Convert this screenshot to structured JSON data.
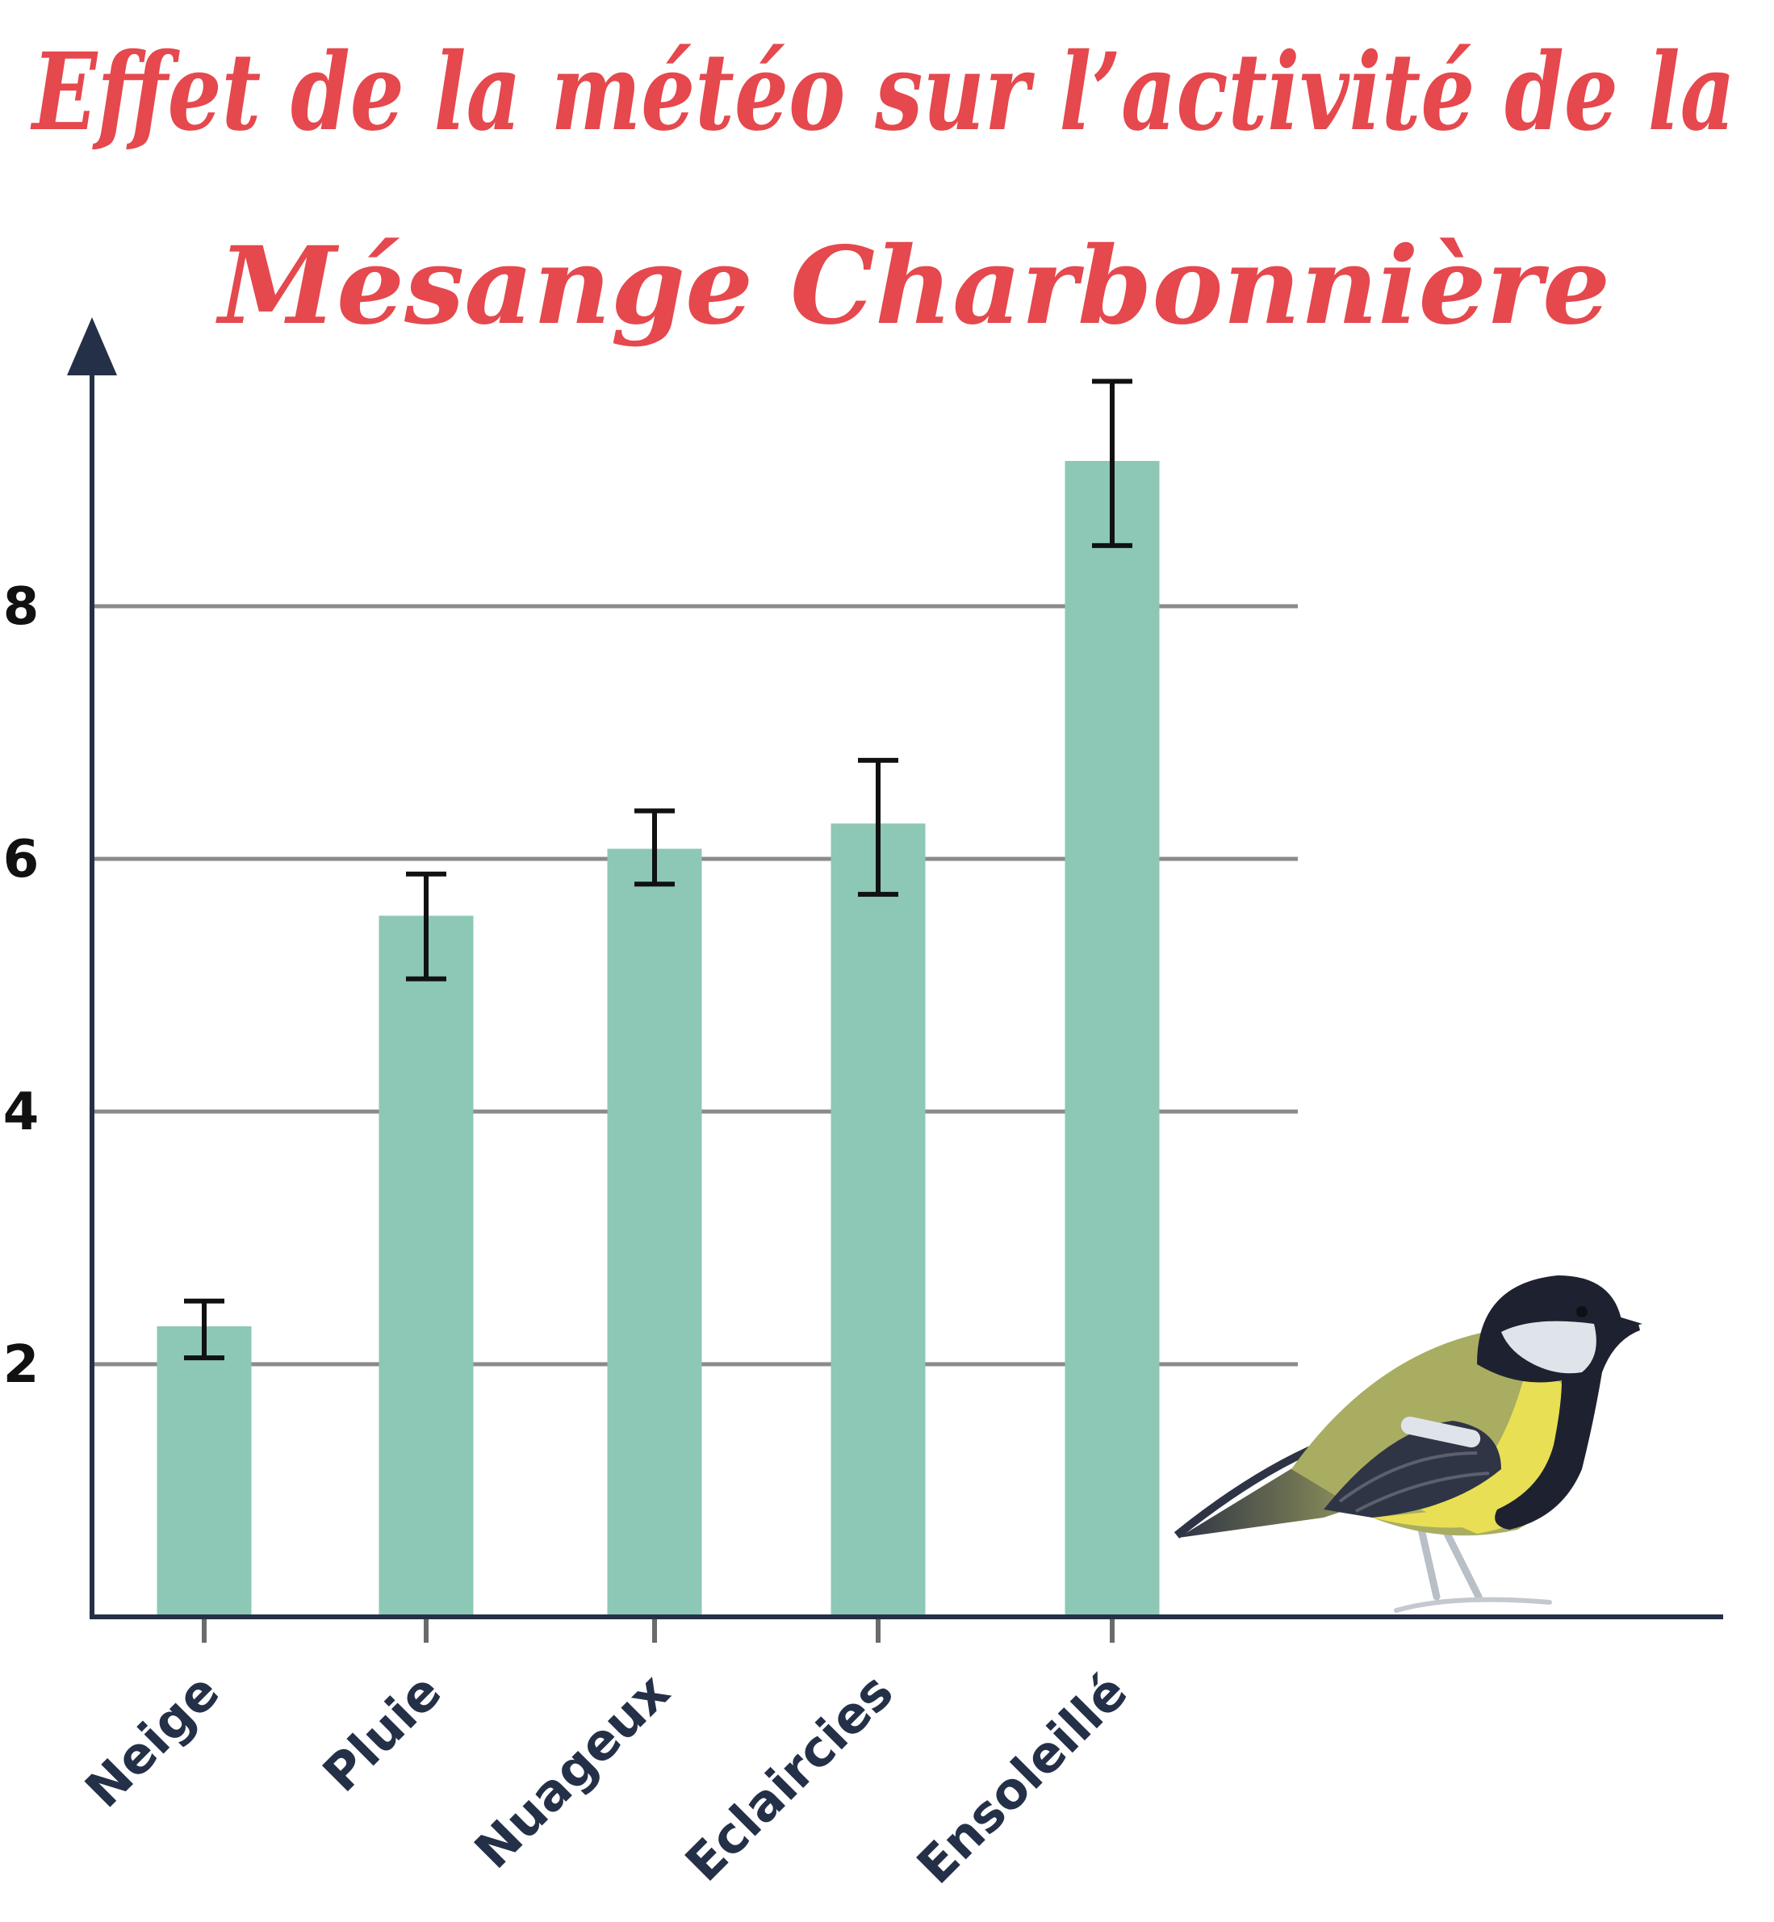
{
  "chart_data": {
    "type": "bar",
    "title_lines": [
      "Effet de la météo sur l’activité de la",
      "Mésange Charbonnière"
    ],
    "categories": [
      "Neige",
      "Pluie",
      "Nuageux",
      "Eclaircies",
      "Ensoleillé"
    ],
    "values": [
      2.3,
      5.55,
      6.08,
      6.28,
      9.15
    ],
    "error_low": [
      2.05,
      5.05,
      5.8,
      5.72,
      8.48
    ],
    "error_high": [
      2.5,
      5.88,
      6.38,
      6.78,
      9.78
    ],
    "yticks": [
      2,
      4,
      6,
      8
    ],
    "ytick_labels": [
      "2",
      "4",
      "6",
      "8"
    ],
    "ylim": [
      0,
      10
    ],
    "grid": true,
    "bar_color": "#8dc7b6",
    "axis_color": "#243047",
    "grid_color": "#8a8a8a",
    "title_color": "#e5484d"
  },
  "decoration": {
    "illustration": "great-tit-bird-icon"
  }
}
